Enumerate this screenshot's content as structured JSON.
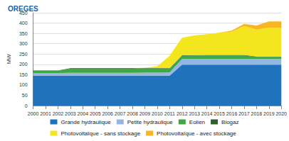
{
  "chart_data": {
    "type": "area",
    "title": "OREGES",
    "y_label": "MW",
    "categories": [
      "2000",
      "2001",
      "2002",
      "2003",
      "2004",
      "2005",
      "2006",
      "2007",
      "2008",
      "2009",
      "2010",
      "2011",
      "2012",
      "2013",
      "2014",
      "2015",
      "2016",
      "2017",
      "2018",
      "2019",
      "2020"
    ],
    "series": [
      {
        "name": "Grande hydraulique",
        "color": "#1f72bb",
        "values": [
          145,
          145,
          145,
          145,
          145,
          145,
          145,
          145,
          145,
          145,
          145,
          145,
          198,
          198,
          198,
          198,
          198,
          198,
          198,
          198,
          198
        ]
      },
      {
        "name": "Petite hydraulique",
        "color": "#93b6e2",
        "values": [
          13,
          13,
          13,
          14,
          14,
          14,
          14,
          14,
          14,
          15,
          15,
          16,
          28,
          28,
          28,
          28,
          28,
          28,
          28,
          28,
          28
        ]
      },
      {
        "name": "Eolien",
        "color": "#3ea845",
        "values": [
          10,
          10,
          10,
          20,
          20,
          20,
          20,
          20,
          20,
          20,
          20,
          18,
          15,
          16,
          17,
          17,
          17,
          17,
          10,
          10,
          10
        ]
      },
      {
        "name": "Biogaz",
        "color": "#2f5f2c",
        "values": [
          2,
          2,
          2,
          2,
          2,
          2,
          2,
          2,
          2,
          2,
          2,
          2,
          3,
          3,
          3,
          3,
          3,
          3,
          2,
          2,
          2
        ]
      },
      {
        "name": "Photovoltaïque - sans stockage",
        "color": "#f3e51e",
        "values": [
          0,
          0,
          0,
          0,
          0,
          0,
          0,
          0,
          0,
          2,
          8,
          60,
          85,
          95,
          100,
          108,
          112,
          140,
          130,
          140,
          140
        ]
      },
      {
        "name": "Photovoltaïque - avec stockage",
        "color": "#f7b520",
        "values": [
          0,
          0,
          0,
          0,
          0,
          0,
          0,
          0,
          0,
          0,
          0,
          0,
          0,
          0,
          0,
          0,
          5,
          10,
          20,
          30,
          30
        ]
      }
    ],
    "ylim": [
      0,
      450
    ],
    "yticks": [
      0,
      50,
      100,
      150,
      200,
      250,
      300,
      350,
      400,
      450
    ],
    "stacked": true,
    "grid": true,
    "legend": "bottom"
  }
}
